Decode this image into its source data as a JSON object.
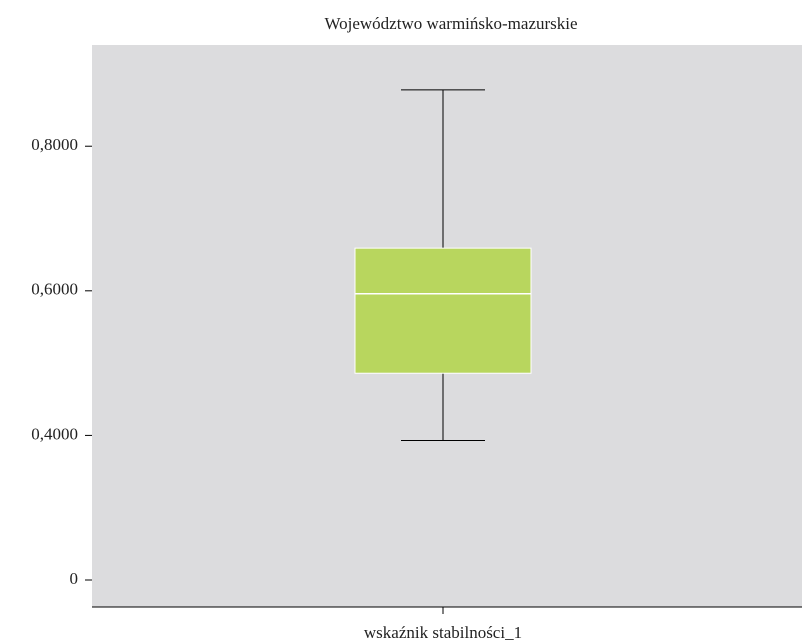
{
  "chart_data": {
    "type": "box",
    "title": "Województwo warmińsko-mazurskie",
    "categories": [
      "wskaźnik stabilności_1"
    ],
    "boxes": [
      {
        "min": 0.393,
        "q1": 0.486,
        "median": 0.596,
        "q3": 0.659,
        "max": 0.878
      }
    ],
    "color": "#b8d65e",
    "background": "#dcdcde",
    "ylim": [
      0,
      0.94
    ],
    "ybreak": [
      0,
      0.2
    ],
    "yticks": [
      0,
      {
        "value": 0.4,
        "label": "0,4000"
      },
      {
        "value": 0.6,
        "label": "0,6000"
      },
      {
        "value": 0.8,
        "label": "0,8000"
      }
    ]
  }
}
